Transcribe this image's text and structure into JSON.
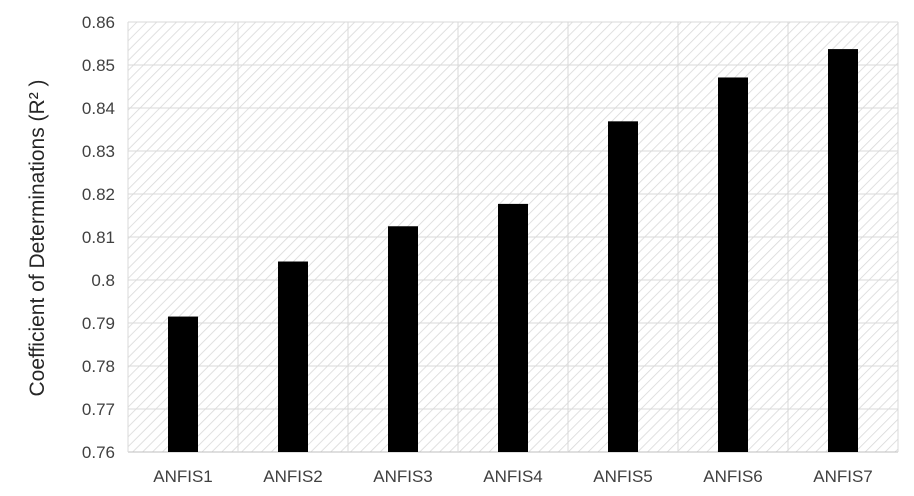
{
  "chart_data": {
    "type": "bar",
    "categories": [
      "ANFIS1",
      "ANFIS2",
      "ANFIS3",
      "ANFIS4",
      "ANFIS5",
      "ANFIS6",
      "ANFIS7"
    ],
    "values": [
      0.7915,
      0.8043,
      0.8125,
      0.8177,
      0.8369,
      0.8471,
      0.8537
    ],
    "ylabel": "Coefficient of Determinations (R² )",
    "ylim": [
      0.76,
      0.86
    ],
    "yticks": [
      "0.76",
      "0.77",
      "0.78",
      "0.79",
      "0.8",
      "0.81",
      "0.82",
      "0.83",
      "0.84",
      "0.85",
      "0.86"
    ],
    "grid": true,
    "background": "hatched",
    "bar_color": "#000000"
  }
}
